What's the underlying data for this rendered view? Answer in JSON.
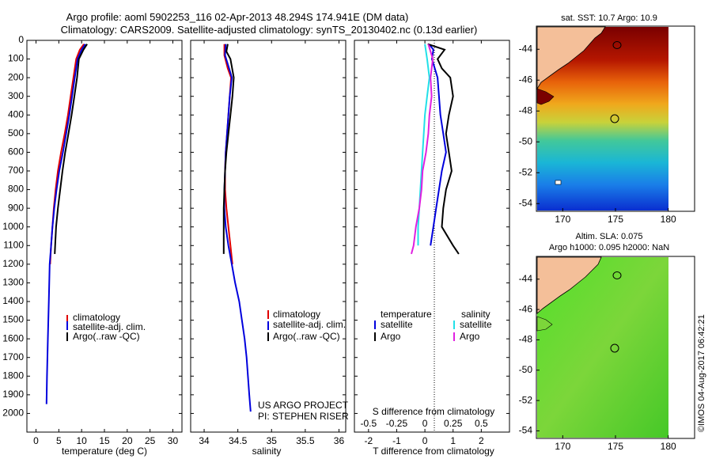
{
  "header": {
    "line1": "Argo profile: aoml 5902253_116 02-Apr-2013 48.294S 174.941E (DM data)",
    "line2": "Climatology: CARS2009. Satellite-adjusted climatology: synTS_20130402.nc (0.13d earlier)"
  },
  "colors": {
    "climatology": "#e00000",
    "satellite": "#0000dd",
    "argo": "#000000",
    "sal_satellite": "#22e0e8",
    "sal_argo": "#e020e0",
    "land": "#f4bf99"
  },
  "chart_data": [
    {
      "type": "line",
      "xlabel": "temperature (deg C)",
      "xlim": [
        -2,
        32
      ],
      "xticks": [
        0,
        5,
        10,
        15,
        20,
        25,
        30
      ],
      "ylim": [
        0,
        2100
      ],
      "yticks": [
        0,
        100,
        200,
        300,
        400,
        500,
        600,
        700,
        800,
        900,
        1000,
        1100,
        1200,
        1300,
        1400,
        1500,
        1600,
        1700,
        1800,
        1900,
        2000
      ],
      "legend": {
        "entries": [
          "climatology",
          "satellite-adj. clim.",
          "Argo(..raw -QC)"
        ],
        "placement": "bottom-left"
      },
      "series": [
        {
          "name": "climatology",
          "color": "#e00000",
          "points": [
            [
              10.5,
              20
            ],
            [
              9.6,
              50
            ],
            [
              8.8,
              100
            ],
            [
              8.2,
              200
            ],
            [
              7.6,
              300
            ],
            [
              7.0,
              400
            ],
            [
              6.3,
              500
            ],
            [
              5.5,
              600
            ],
            [
              4.8,
              700
            ],
            [
              4.3,
              800
            ],
            [
              3.9,
              900
            ],
            [
              3.6,
              1000
            ],
            [
              3.3,
              1100
            ],
            [
              3.1,
              1200
            ]
          ]
        },
        {
          "name": "satellite-adj. clim.",
          "color": "#0000dd",
          "points": [
            [
              10.8,
              20
            ],
            [
              10.0,
              50
            ],
            [
              9.1,
              100
            ],
            [
              8.5,
              200
            ],
            [
              7.9,
              300
            ],
            [
              7.3,
              400
            ],
            [
              6.6,
              500
            ],
            [
              5.9,
              600
            ],
            [
              5.1,
              700
            ],
            [
              4.5,
              800
            ],
            [
              4.0,
              900
            ],
            [
              3.6,
              1000
            ],
            [
              3.3,
              1100
            ],
            [
              3.0,
              1200
            ],
            [
              2.8,
              1400
            ],
            [
              2.6,
              1600
            ],
            [
              2.4,
              1800
            ],
            [
              2.3,
              1950
            ]
          ]
        },
        {
          "name": "Argo(..raw -QC)",
          "color": "#000000",
          "points": [
            [
              11.2,
              20
            ],
            [
              10.4,
              50
            ],
            [
              9.4,
              100
            ],
            [
              9.0,
              200
            ],
            [
              8.4,
              300
            ],
            [
              7.8,
              400
            ],
            [
              7.1,
              500
            ],
            [
              6.4,
              600
            ],
            [
              5.8,
              700
            ],
            [
              5.3,
              800
            ],
            [
              4.8,
              900
            ],
            [
              4.4,
              1000
            ],
            [
              4.2,
              1100
            ],
            [
              4.1,
              1145
            ]
          ]
        }
      ]
    },
    {
      "type": "line",
      "xlabel": "salinity",
      "xlim": [
        33.8,
        36.1
      ],
      "xticks": [
        34,
        34.5,
        35,
        35.5,
        36
      ],
      "ylim": [
        0,
        2100
      ],
      "yticks": [
        0,
        100,
        200,
        300,
        400,
        500,
        600,
        700,
        800,
        900,
        1000,
        1100,
        1200,
        1300,
        1400,
        1500,
        1600,
        1700,
        1800,
        1900,
        2000
      ],
      "legend": {
        "entries": [
          "climatology",
          "satellite-adj. clim.",
          "Argo(..raw -QC)"
        ],
        "placement": "bottom-left"
      },
      "annotations": [
        "US ARGO PROJECT",
        "PI: STEPHEN RISER"
      ],
      "series": [
        {
          "name": "climatology",
          "color": "#e00000",
          "points": [
            [
              34.3,
              20
            ],
            [
              34.3,
              80
            ],
            [
              34.35,
              150
            ],
            [
              34.4,
              200
            ],
            [
              34.38,
              300
            ],
            [
              34.36,
              400
            ],
            [
              34.34,
              500
            ],
            [
              34.32,
              600
            ],
            [
              34.31,
              700
            ],
            [
              34.31,
              800
            ],
            [
              34.33,
              900
            ],
            [
              34.36,
              1000
            ],
            [
              34.39,
              1100
            ],
            [
              34.42,
              1200
            ]
          ]
        },
        {
          "name": "satellite-adj. clim.",
          "color": "#0000dd",
          "points": [
            [
              34.32,
              20
            ],
            [
              34.31,
              80
            ],
            [
              34.37,
              150
            ],
            [
              34.41,
              200
            ],
            [
              34.38,
              300
            ],
            [
              34.36,
              400
            ],
            [
              34.34,
              500
            ],
            [
              34.32,
              600
            ],
            [
              34.31,
              700
            ],
            [
              34.3,
              800
            ],
            [
              34.3,
              900
            ],
            [
              34.32,
              1000
            ],
            [
              34.36,
              1100
            ],
            [
              34.41,
              1200
            ],
            [
              34.46,
              1300
            ],
            [
              34.52,
              1400
            ],
            [
              34.56,
              1500
            ],
            [
              34.6,
              1600
            ],
            [
              34.63,
              1700
            ],
            [
              34.65,
              1800
            ],
            [
              34.67,
              1900
            ],
            [
              34.69,
              1990
            ]
          ]
        },
        {
          "name": "Argo(..raw -QC)",
          "color": "#000000",
          "points": [
            [
              34.35,
              20
            ],
            [
              34.33,
              60
            ],
            [
              34.39,
              100
            ],
            [
              34.44,
              200
            ],
            [
              34.42,
              300
            ],
            [
              34.39,
              400
            ],
            [
              34.36,
              500
            ],
            [
              34.33,
              600
            ],
            [
              34.31,
              700
            ],
            [
              34.3,
              800
            ],
            [
              34.29,
              900
            ],
            [
              34.29,
              1000
            ],
            [
              34.29,
              1145
            ]
          ]
        }
      ]
    },
    {
      "type": "line",
      "xlabel": "T difference from climatology",
      "xlabel2": "S difference from climatology",
      "xlim": [
        -2.5,
        3.0
      ],
      "xticks": [
        -2,
        -1,
        0,
        1,
        2
      ],
      "xlim2": [
        -0.625,
        0.75
      ],
      "xticks2": [
        -0.5,
        -0.25,
        0,
        0.25,
        0.5
      ],
      "ylim": [
        0,
        2100
      ],
      "legend": {
        "placement": "bottom",
        "temperature_title": "temperature",
        "salinity_title": "salinity",
        "temperature_entries": [
          "satellite",
          "Argo"
        ],
        "salinity_entries": [
          "satellite",
          "Argo"
        ]
      },
      "series": [
        {
          "name": "satellite",
          "group": "temperature",
          "color": "#0000dd",
          "points": [
            [
              0.15,
              20
            ],
            [
              0.3,
              50
            ],
            [
              0.25,
              100
            ],
            [
              0.45,
              200
            ],
            [
              0.5,
              300
            ],
            [
              0.55,
              400
            ],
            [
              0.65,
              500
            ],
            [
              0.75,
              600
            ],
            [
              0.6,
              700
            ],
            [
              0.5,
              800
            ],
            [
              0.4,
              900
            ],
            [
              0.3,
              1000
            ],
            [
              0.2,
              1100
            ]
          ]
        },
        {
          "name": "Argo",
          "group": "temperature",
          "color": "#000000",
          "points": [
            [
              0.1,
              20
            ],
            [
              0.7,
              50
            ],
            [
              0.45,
              100
            ],
            [
              0.6,
              150
            ],
            [
              0.9,
              200
            ],
            [
              1.0,
              300
            ],
            [
              0.85,
              400
            ],
            [
              0.75,
              500
            ],
            [
              0.85,
              600
            ],
            [
              0.95,
              700
            ],
            [
              0.75,
              800
            ],
            [
              0.65,
              900
            ],
            [
              0.6,
              1000
            ],
            [
              1.0,
              1100
            ],
            [
              1.2,
              1145
            ]
          ]
        },
        {
          "name": "satellite",
          "group": "salinity",
          "color": "#22e0e8",
          "points": [
            [
              0.0,
              20
            ],
            [
              0.02,
              100
            ],
            [
              0.04,
              200
            ],
            [
              0.02,
              300
            ],
            [
              0.0,
              400
            ],
            [
              -0.02,
              600
            ],
            [
              -0.04,
              800
            ],
            [
              -0.05,
              900
            ],
            [
              -0.06,
              1000
            ],
            [
              -0.06,
              1100
            ]
          ]
        },
        {
          "name": "Argo",
          "group": "salinity",
          "color": "#e020e0",
          "points": [
            [
              0.03,
              20
            ],
            [
              0.07,
              100
            ],
            [
              0.05,
              200
            ],
            [
              0.06,
              300
            ],
            [
              0.04,
              400
            ],
            [
              0.03,
              500
            ],
            [
              0.01,
              600
            ],
            [
              -0.02,
              700
            ],
            [
              -0.03,
              800
            ],
            [
              -0.05,
              900
            ],
            [
              -0.08,
              1000
            ],
            [
              -0.1,
              1100
            ],
            [
              -0.12,
              1145
            ]
          ]
        }
      ]
    },
    {
      "type": "heatmap",
      "title": "sat. SST: 10.7 Argo: 10.9",
      "xticks": [
        170,
        175,
        180
      ],
      "yticks": [
        -44,
        -46,
        -48,
        -50,
        -52,
        -54
      ],
      "xlim": [
        167.5,
        182.5
      ],
      "ylim": [
        -54.5,
        -42.5
      ],
      "marker": {
        "lon": 174.941,
        "lat": -48.294
      },
      "field": "SST"
    },
    {
      "type": "heatmap",
      "title": "Altim. SLA: 0.075",
      "subtitle": "Argo h1000: 0.095 h2000: NaN",
      "xticks": [
        170,
        175,
        180
      ],
      "yticks": [
        -44,
        -46,
        -48,
        -50,
        -52,
        -54
      ],
      "xlim": [
        167.5,
        182.5
      ],
      "ylim": [
        -54.5,
        -42.5
      ],
      "marker": {
        "lon": 174.941,
        "lat": -48.294
      },
      "field": "SLA"
    }
  ],
  "footer": {
    "credit": "©IMOS 04-Aug-2017 06:42:21"
  }
}
